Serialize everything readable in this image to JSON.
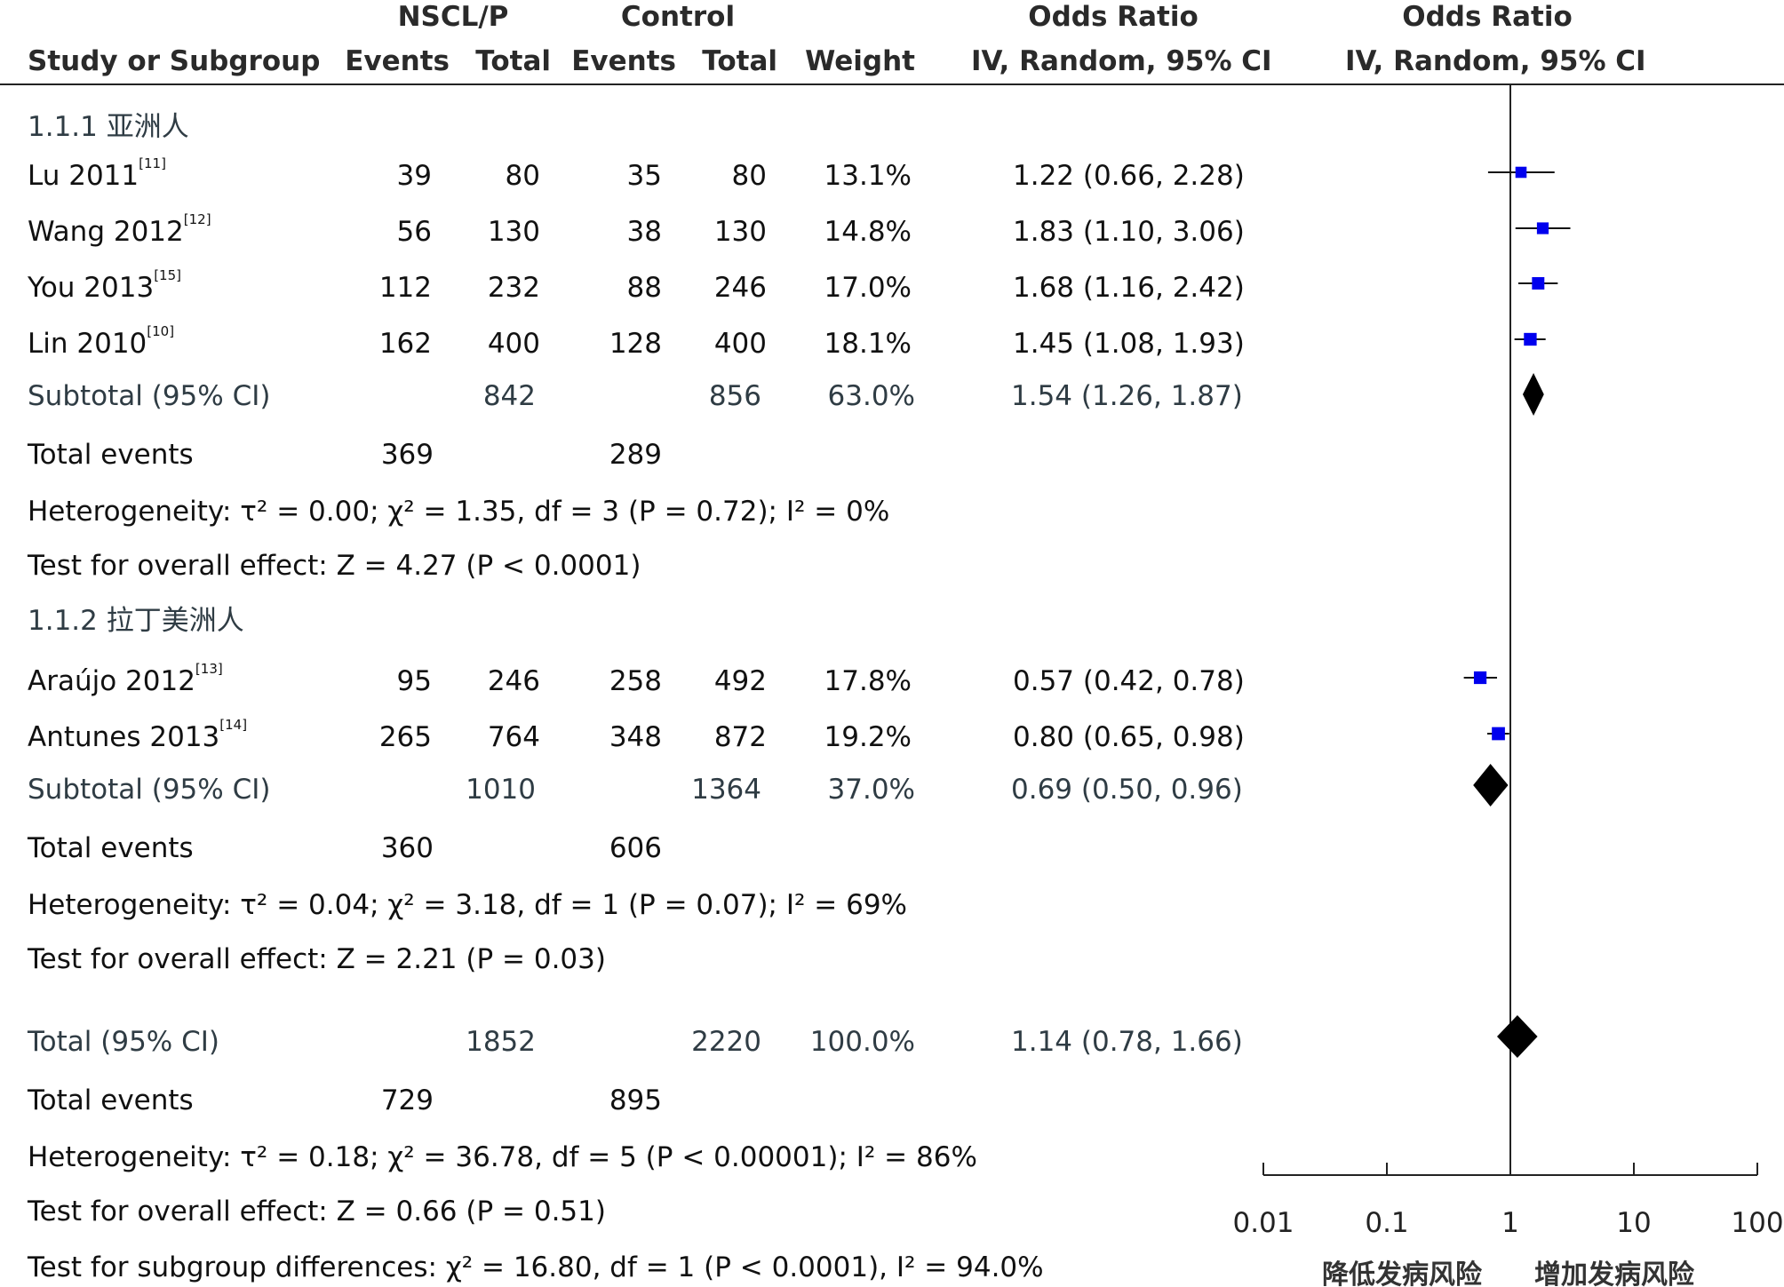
{
  "header": {
    "group1": "NSCL/P",
    "group2": "Control",
    "or_col1": "Odds Ratio",
    "or_col2": "Odds Ratio",
    "study": "Study or Subgroup",
    "events1": "Events",
    "total1": "Total",
    "events2": "Events",
    "total2": "Total",
    "weight": "Weight",
    "method1": "IV, Random, 95% CI",
    "method2": "IV, Random, 95% CI"
  },
  "subgroups": [
    {
      "title": "1.1.1 亚洲人",
      "rows": [
        {
          "study": "Lu 2011",
          "ref": "[11]",
          "e1": "39",
          "t1": "80",
          "e2": "35",
          "t2": "80",
          "weight": "13.1%",
          "ci": "1.22 (0.66, 2.28)"
        },
        {
          "study": "Wang 2012",
          "ref": "[12]",
          "e1": "56",
          "t1": "130",
          "e2": "38",
          "t2": "130",
          "weight": "14.8%",
          "ci": "1.83 (1.10, 3.06)"
        },
        {
          "study": "You 2013",
          "ref": "[15]",
          "e1": "112",
          "t1": "232",
          "e2": "88",
          "t2": "246",
          "weight": "17.0%",
          "ci": "1.68 (1.16, 2.42)"
        },
        {
          "study": "Lin 2010",
          "ref": "[10]",
          "e1": "162",
          "t1": "400",
          "e2": "128",
          "t2": "400",
          "weight": "18.1%",
          "ci": "1.45 (1.08, 1.93)"
        }
      ],
      "subtotal": {
        "label": "Subtotal (95% CI)",
        "t1": "842",
        "t2": "856",
        "weight": "63.0%",
        "ci": "1.54 (1.26, 1.87)"
      },
      "total_events": {
        "label": "Total events",
        "e1": "369",
        "e2": "289"
      },
      "heterogeneity": "Heterogeneity: τ² = 0.00; χ² = 1.35, df = 3 (P = 0.72); I² = 0%",
      "overall": "Test for overall effect: Z = 4.27 (P < 0.0001)"
    },
    {
      "title": "1.1.2 拉丁美洲人",
      "rows": [
        {
          "study": "Araújo 2012",
          "ref": "[13]",
          "e1": "95",
          "t1": "246",
          "e2": "258",
          "t2": "492",
          "weight": "17.8%",
          "ci": "0.57 (0.42, 0.78)"
        },
        {
          "study": "Antunes 2013",
          "ref": "[14]",
          "e1": "265",
          "t1": "764",
          "e2": "348",
          "t2": "872",
          "weight": "19.2%",
          "ci": "0.80 (0.65, 0.98)"
        }
      ],
      "subtotal": {
        "label": "Subtotal (95% CI)",
        "t1": "1010",
        "t2": "1364",
        "weight": "37.0%",
        "ci": "0.69 (0.50, 0.96)"
      },
      "total_events": {
        "label": "Total events",
        "e1": "360",
        "e2": "606"
      },
      "heterogeneity": "Heterogeneity: τ² = 0.04; χ² = 3.18, df = 1 (P = 0.07); I² = 69%",
      "overall": "Test for overall effect: Z = 2.21 (P = 0.03)"
    }
  ],
  "total": {
    "label": "Total (95% CI)",
    "t1": "1852",
    "t2": "2220",
    "weight": "100.0%",
    "ci": "1.14 (0.78, 1.66)"
  },
  "total_events": {
    "label": "Total events",
    "e1": "729",
    "e2": "895"
  },
  "heterogeneity": "Heterogeneity: τ² = 0.18; χ² = 36.78, df = 5 (P < 0.00001); I² = 86%",
  "overall": "Test for overall effect: Z = 0.66 (P = 0.51)",
  "subgroup_diff": "Test for subgroup differences: χ² = 16.80, df = 1 (P < 0.0001), I² = 94.0%",
  "axis": {
    "ticks": [
      "0.01",
      "0.1",
      "1",
      "10",
      "100"
    ],
    "left_label": "降低发病风险",
    "right_label": "增加发病风险"
  },
  "chart_data": {
    "type": "forest",
    "scale": "log",
    "xlim": [
      0.01,
      100
    ],
    "reference_line": 1,
    "marker_color": "#0000ee",
    "diamond_color": "#000000",
    "studies": [
      {
        "name": "Lu 2011",
        "or": 1.22,
        "lo": 0.66,
        "hi": 2.28,
        "weight": 13.1
      },
      {
        "name": "Wang 2012",
        "or": 1.83,
        "lo": 1.1,
        "hi": 3.06,
        "weight": 14.8
      },
      {
        "name": "You 2013",
        "or": 1.68,
        "lo": 1.16,
        "hi": 2.42,
        "weight": 17.0
      },
      {
        "name": "Lin 2010",
        "or": 1.45,
        "lo": 1.08,
        "hi": 1.93,
        "weight": 18.1
      },
      {
        "name": "Araújo 2012",
        "or": 0.57,
        "lo": 0.42,
        "hi": 0.78,
        "weight": 17.8
      },
      {
        "name": "Antunes 2013",
        "or": 0.8,
        "lo": 0.65,
        "hi": 0.98,
        "weight": 19.2
      }
    ],
    "diamonds": [
      {
        "name": "Subtotal 1.1.1",
        "or": 1.54,
        "lo": 1.26,
        "hi": 1.87
      },
      {
        "name": "Subtotal 1.1.2",
        "or": 0.69,
        "lo": 0.5,
        "hi": 0.96
      },
      {
        "name": "Total",
        "or": 1.14,
        "lo": 0.78,
        "hi": 1.66
      }
    ]
  }
}
